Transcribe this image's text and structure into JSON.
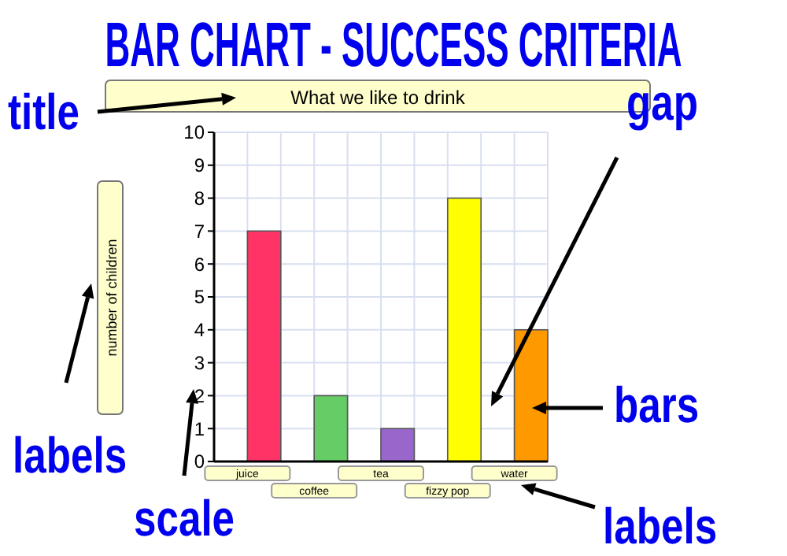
{
  "chart_data": {
    "type": "bar",
    "title": "BAR CHART - SUCCESS CRITERIA",
    "subtitle": "What we like to drink",
    "ylabel": "number of children",
    "categories": [
      "juice",
      "coffee",
      "tea",
      "fizzy pop",
      "water"
    ],
    "values": [
      7,
      2,
      1,
      8,
      4
    ],
    "colors": [
      "#ff3366",
      "#66cc66",
      "#9966cc",
      "#ffff00",
      "#ff9900"
    ],
    "ylim": [
      0,
      10
    ],
    "yticks": [
      0,
      1,
      2,
      3,
      4,
      5,
      6,
      7,
      8,
      9,
      10
    ],
    "grid": true,
    "annotations": [
      "title",
      "labels",
      "scale",
      "gap",
      "bars",
      "labels"
    ]
  }
}
